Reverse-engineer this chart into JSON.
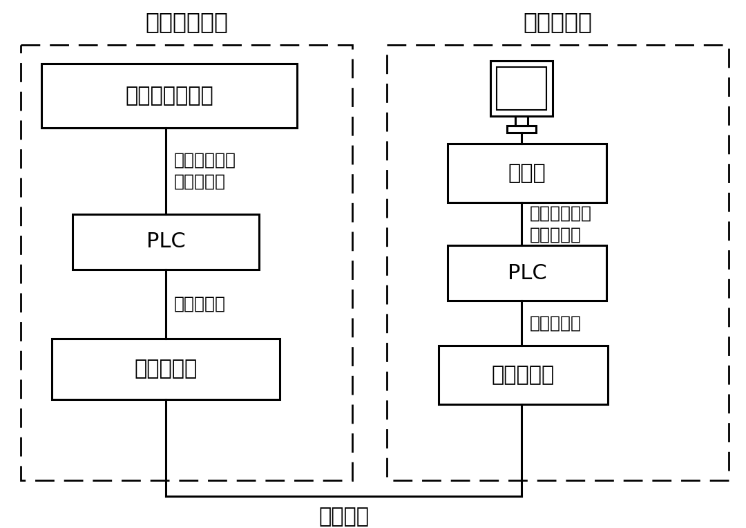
{
  "bg_color": "#ffffff",
  "text_color": "#000000",
  "left_title": "变压器端控箱",
  "right_title": "用户控制室",
  "left_box1": "变压器测控信号",
  "left_box2": "PLC",
  "left_box3": "光电交换机",
  "right_box1": "显示屏",
  "right_box2": "PLC",
  "right_box3": "光电交换机",
  "label_wire1_left": "铜芯聚氯乙烯\n绝缘软导线",
  "label_wire2_left": "屏蔽双绞线",
  "label_wire1_right": "铜芯聚氯乙烯\n绝缘软导线",
  "label_wire2_right": "屏蔽双绞线",
  "label_bottom": "单模光纤",
  "font_size_title": 24,
  "font_size_box": 22,
  "font_size_label": 18
}
